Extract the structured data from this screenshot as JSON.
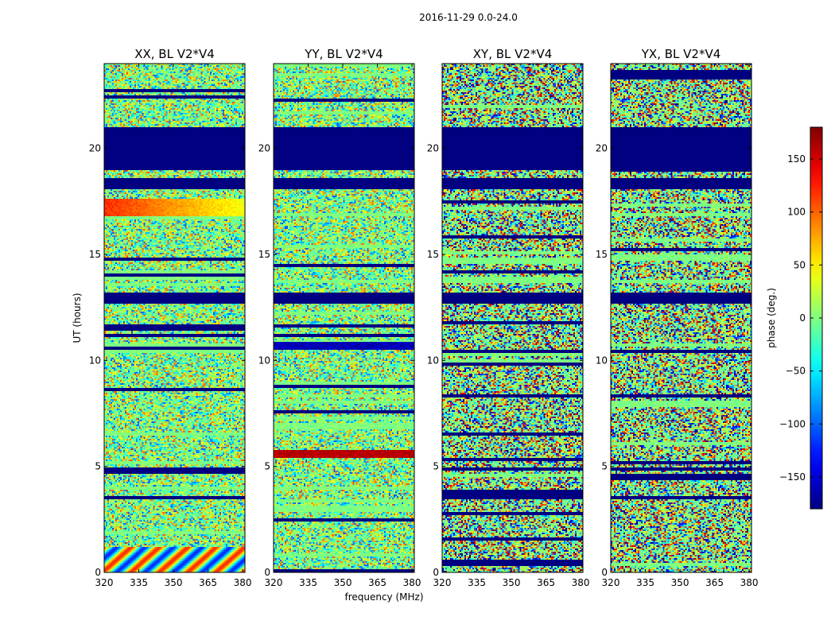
{
  "chart_data": {
    "type": "heatmap",
    "suptitle": "2016-11-29 0.0-24.0",
    "xlabel": "frequency (MHz)",
    "ylabel": "UT (hours)",
    "xlim": [
      320,
      381
    ],
    "ylim": [
      0,
      24
    ],
    "xticks": [
      320,
      335,
      350,
      365,
      380
    ],
    "yticks": [
      0,
      5,
      10,
      15,
      20
    ],
    "panels": [
      {
        "title": "XX, BL V2*V4",
        "pol": "XX"
      },
      {
        "title": "YY, BL V2*V4",
        "pol": "YY"
      },
      {
        "title": "XY, BL V2*V4",
        "pol": "XY"
      },
      {
        "title": "YX, BL V2*V4",
        "pol": "YX"
      }
    ],
    "colorbar": {
      "label": "phase (deg.)",
      "range": [
        -180,
        180
      ],
      "ticks": [
        -150,
        -100,
        -50,
        0,
        50,
        100,
        150
      ],
      "tick_labels": [
        "−150",
        "−100",
        "−50",
        "0",
        "50",
        "100",
        "150"
      ],
      "colormap": "jet"
    },
    "features": {
      "flagged_bands_ut": [
        [
          19.0,
          21.0
        ],
        [
          18.1,
          18.6
        ],
        [
          12.7,
          13.2
        ]
      ],
      "xx_phase_band": {
        "ut": [
          16.8,
          17.6
        ],
        "phase_deg": 120
      },
      "yy_phase_band": {
        "ut": [
          5.4,
          5.8
        ],
        "phase_deg": 160
      },
      "yy_neg_band": {
        "ut": [
          10.5,
          10.9
        ],
        "phase_deg": -160
      }
    }
  }
}
